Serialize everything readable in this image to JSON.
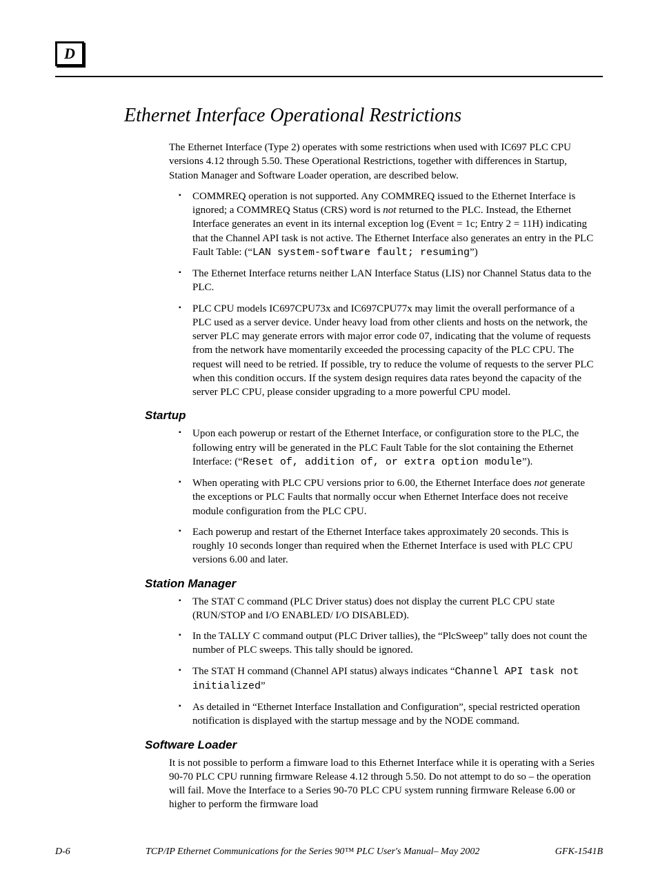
{
  "appendix_letter": "D",
  "title": "Ethernet Interface Operational Restrictions",
  "intro": "The Ethernet Interface (Type 2) operates with some restrictions when used with IC697 PLC CPU versions 4.12 through 5.50.   These Operational Restrictions, together with differences in Startup, Station Manager and Software Loader operation, are described below.",
  "top_bullets": {
    "b1_a": "COMMREQ operation is not supported. Any COMMREQ issued to the Ethernet Interface is ignored; a COMMREQ Status (CRS) word is ",
    "b1_not": "not",
    "b1_b": " returned to the PLC. Instead, the Ethernet Interface generates an event in its internal exception log (Event = 1c; Entry 2 = 11H) indicating that the Channel API task is not active. The Ethernet Interface also generates an entry in the PLC Fault Table: (“",
    "b1_mono": "LAN system-software fault; resuming",
    "b1_c": "”)",
    "b2": "The Ethernet Interface returns neither LAN Interface Status (LIS) nor Channel Status data to the PLC.",
    "b3": "PLC CPU models IC697CPU73x and IC697CPU77x  may limit the overall performance of a PLC used as a server device. Under heavy load from other clients and hosts on the network, the server PLC may generate errors with major error code 07, indicating that the volume of requests from the network have momentarily exceeded the processing capacity of the PLC CPU.  The request will need to be retried.  If possible, try to reduce the volume of requests to the server PLC when this condition occurs. If the system design requires data rates beyond the capacity of the server PLC CPU, please consider upgrading to a more powerful CPU model."
  },
  "startup": {
    "heading": "Startup",
    "s1_a": "Upon each powerup or restart of the Ethernet Interface, or configuration store to the PLC, the following entry will be generated in the PLC Fault Table for the slot containing the Ethernet Interface: (“",
    "s1_mono": "Reset of, addition of, or extra option module",
    "s1_b": "”).",
    "s2_a": "When operating with PLC CPU versions prior to 6.00, the Ethernet Interface does ",
    "s2_not": "not",
    "s2_b": " generate the exceptions or PLC Faults that normally occur when Ethernet Interface does not receive module configuration from the PLC CPU.",
    "s3": "Each powerup and restart of the Ethernet Interface takes approximately 20 seconds. This is roughly 10 seconds longer than required when the Ethernet Interface is used with PLC CPU versions 6.00 and later."
  },
  "station_manager": {
    "heading": "Station Manager",
    "m1": "The  STAT C  command (PLC Driver status)  does not display the current PLC CPU state (RUN/STOP  and I/O ENABLED/ I/O DISABLED).",
    "m2": "In the TALLY C command output (PLC Driver tallies), the “PlcSweep” tally does not count the number of PLC sweeps. This tally should be ignored.",
    "m3_a": "The STAT H command (Channel API status)  always indicates “",
    "m3_mono": "Channel API task not initialized",
    "m3_b": "”",
    "m4": "As detailed in “Ethernet Interface Installation and Configuration”, special restricted operation notification is displayed with the startup message and by the NODE command."
  },
  "software_loader": {
    "heading": "Software Loader",
    "text": "It is not possible to perform a fimware load to this Ethernet Interface while it is operating with a Series 90-70 PLC CPU running firmware Release 4.12 through 5.50.  Do not attempt to do so – the operation will fail.  Move the Interface to a Series 90-70 PLC CPU system running firmware Release 6.00 or higher to perform the firmware load"
  },
  "footer": {
    "page": "D-6",
    "center": "TCP/IP Ethernet Communications for the Series 90™ PLC User's Manual– May 2002",
    "doc": "GFK-1541B"
  }
}
